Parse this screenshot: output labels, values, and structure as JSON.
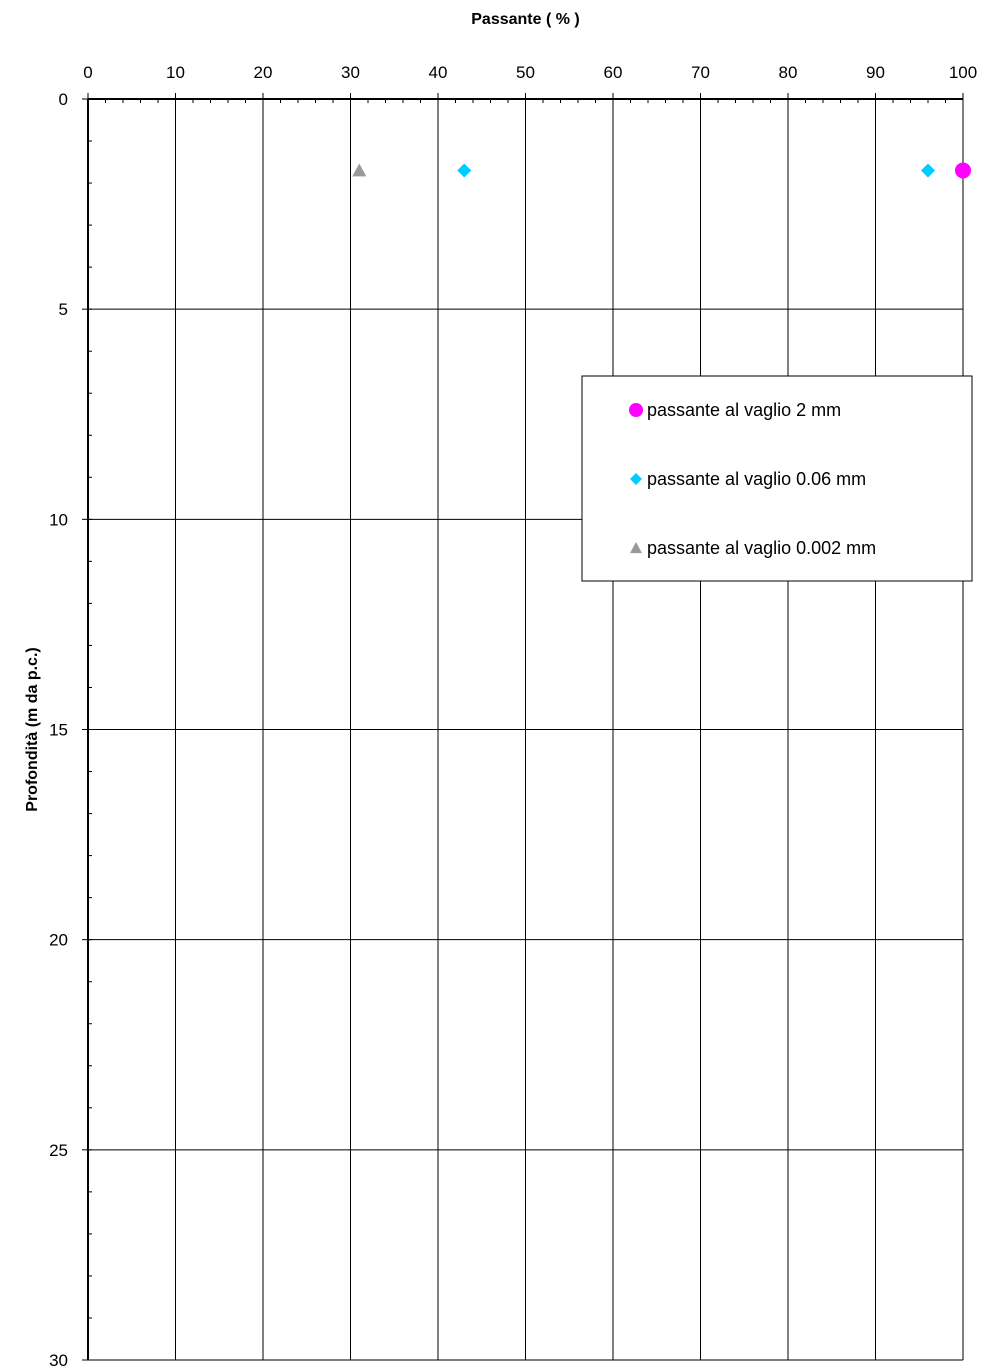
{
  "chart_data": {
    "type": "scatter",
    "xlabel": "Passante ( % )",
    "ylabel": "Profondità (m da p.c.)",
    "xlim": [
      0,
      100
    ],
    "ylim": [
      0,
      30
    ],
    "y_inverted": true,
    "x_axis_position": "top",
    "x_ticks": [
      0,
      10,
      20,
      30,
      40,
      50,
      60,
      70,
      80,
      90,
      100
    ],
    "y_ticks": [
      0,
      5,
      10,
      15,
      20,
      25,
      30
    ],
    "grid": true,
    "legend_position": "right",
    "series": [
      {
        "name": "passante al vaglio 2 mm",
        "marker": "circle",
        "color": "#ff00ff",
        "points": [
          {
            "x": 100,
            "y": 1.7
          }
        ]
      },
      {
        "name": "passante al vaglio 0.06 mm",
        "marker": "diamond",
        "color": "#00ccff",
        "points": [
          {
            "x": 43,
            "y": 1.7
          },
          {
            "x": 96,
            "y": 1.7
          }
        ]
      },
      {
        "name": "passante al vaglio 0.002 mm",
        "marker": "triangle",
        "color": "#999999",
        "points": [
          {
            "x": 31,
            "y": 1.7
          }
        ]
      }
    ]
  }
}
